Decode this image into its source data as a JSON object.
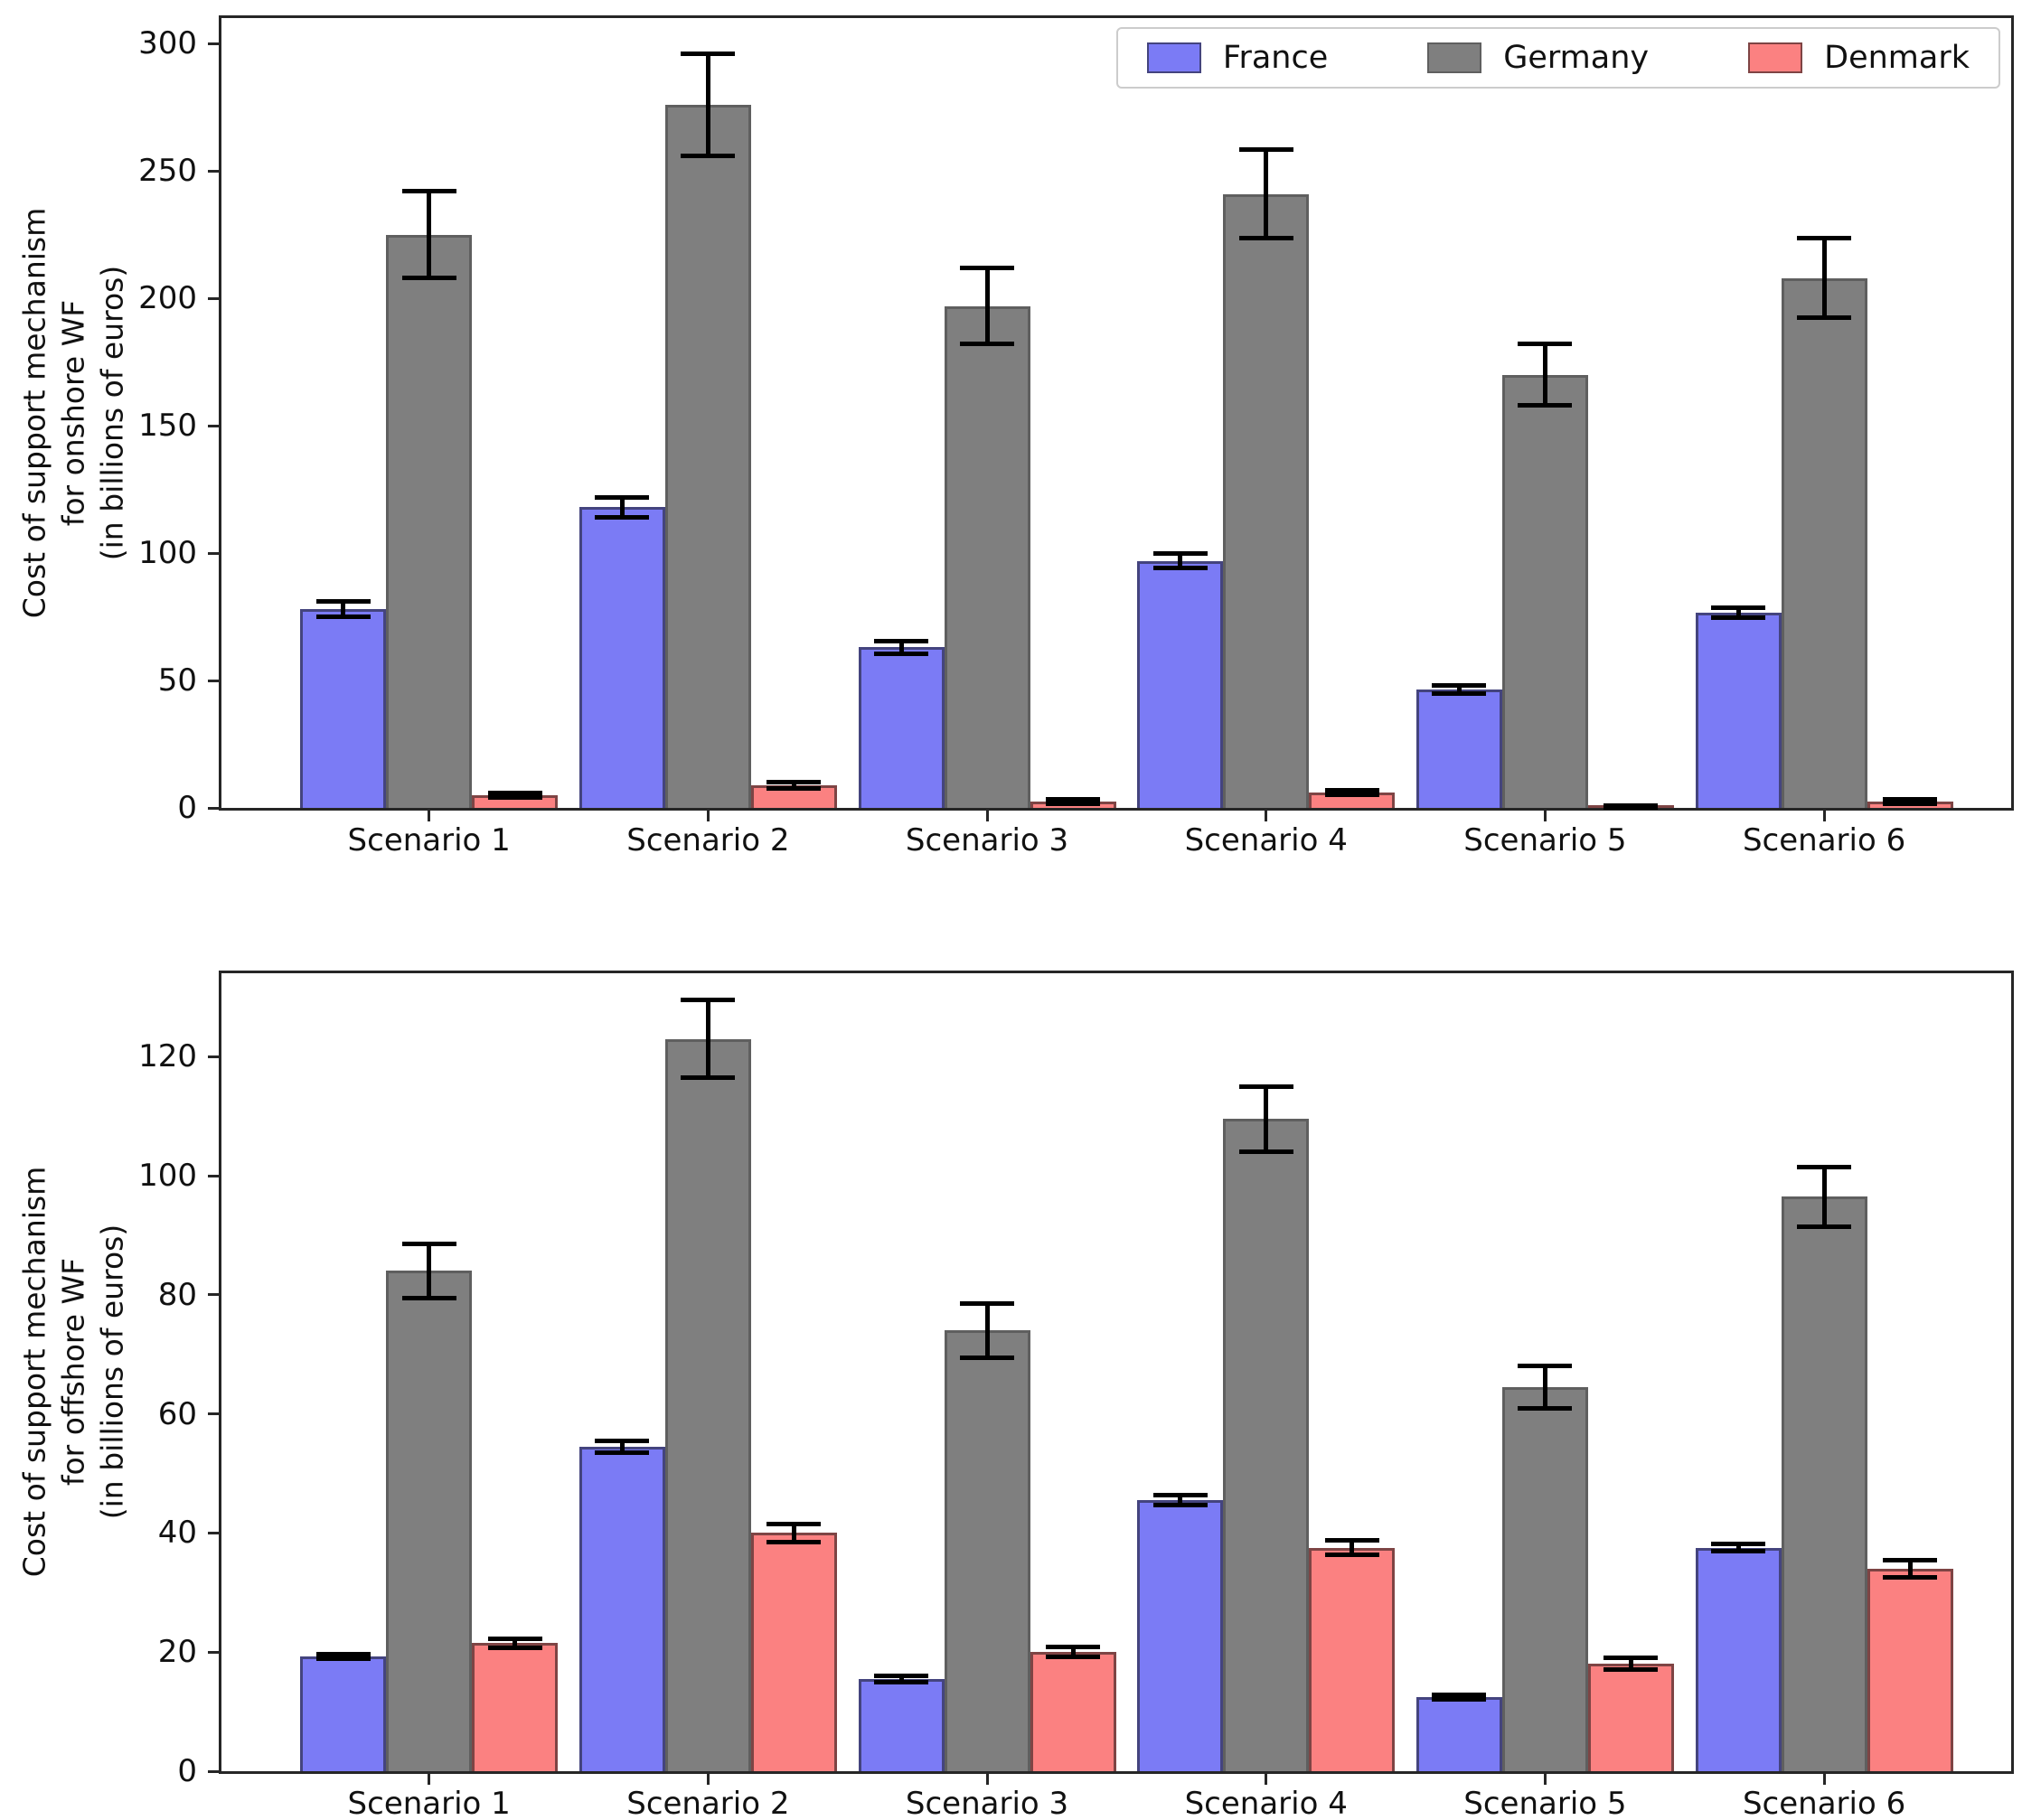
{
  "figure": {
    "background": "#ffffff",
    "text_color": "#111111",
    "axis_color": "#262626",
    "error_bar_color": "#000000"
  },
  "chart_data": [
    {
      "id": "onshore",
      "type": "bar",
      "title": "",
      "xlabel": "",
      "ylabel": "Cost of support mechanism\nfor onshore WF\n(in billions of euros)",
      "categories": [
        "Scenario 1",
        "Scenario 2",
        "Scenario 3",
        "Scenario 4",
        "Scenario 5",
        "Scenario 6"
      ],
      "yticks": [
        0,
        50,
        100,
        150,
        200,
        250,
        300
      ],
      "ylim": [
        0,
        310
      ],
      "grid": false,
      "legend_position": "upper right",
      "error_bars": true,
      "series": [
        {
          "name": "France",
          "fill": "#7b7bf5",
          "edge": "#44447e",
          "values": [
            78,
            118,
            63,
            97,
            46.5,
            76.5
          ],
          "errors": [
            3,
            4,
            2.5,
            3,
            1.5,
            2
          ]
        },
        {
          "name": "Germany",
          "fill": "#7f7f7f",
          "edge": "#5f5f5f",
          "values": [
            225,
            276,
            197,
            241,
            170,
            208
          ],
          "errors": [
            17,
            20,
            15,
            17.5,
            12,
            15.5
          ]
        },
        {
          "name": "Denmark",
          "fill": "#fb8181",
          "edge": "#7e4444",
          "values": [
            5,
            9,
            2.5,
            6,
            0.5,
            2.5
          ],
          "errors": [
            1,
            1.2,
            0.8,
            1,
            0.4,
            0.8
          ]
        }
      ]
    },
    {
      "id": "offshore",
      "type": "bar",
      "title": "",
      "xlabel": "",
      "ylabel": "Cost of support mechanism\nfor offshore WF\n(in billions of euros)",
      "categories": [
        "Scenario 1",
        "Scenario 2",
        "Scenario 3",
        "Scenario 4",
        "Scenario 5",
        "Scenario 6"
      ],
      "yticks": [
        0,
        20,
        40,
        60,
        80,
        100,
        120
      ],
      "ylim": [
        0,
        134
      ],
      "grid": false,
      "legend_position": "none",
      "error_bars": true,
      "series": [
        {
          "name": "France",
          "fill": "#7b7bf5",
          "edge": "#44447e",
          "values": [
            19.3,
            54.5,
            15.5,
            45.5,
            12.5,
            37.5
          ],
          "errors": [
            0.4,
            1,
            0.5,
            0.8,
            0.4,
            0.6
          ]
        },
        {
          "name": "Germany",
          "fill": "#7f7f7f",
          "edge": "#5f5f5f",
          "values": [
            84,
            123,
            74,
            109.5,
            64.5,
            96.5
          ],
          "errors": [
            4.5,
            6.5,
            4.5,
            5.5,
            3.5,
            5
          ]
        },
        {
          "name": "Denmark",
          "fill": "#fb8181",
          "edge": "#7e4444",
          "values": [
            21.5,
            40,
            20,
            37.5,
            18,
            34
          ],
          "errors": [
            0.8,
            1.5,
            0.8,
            1.2,
            1,
            1.5
          ]
        }
      ]
    }
  ]
}
